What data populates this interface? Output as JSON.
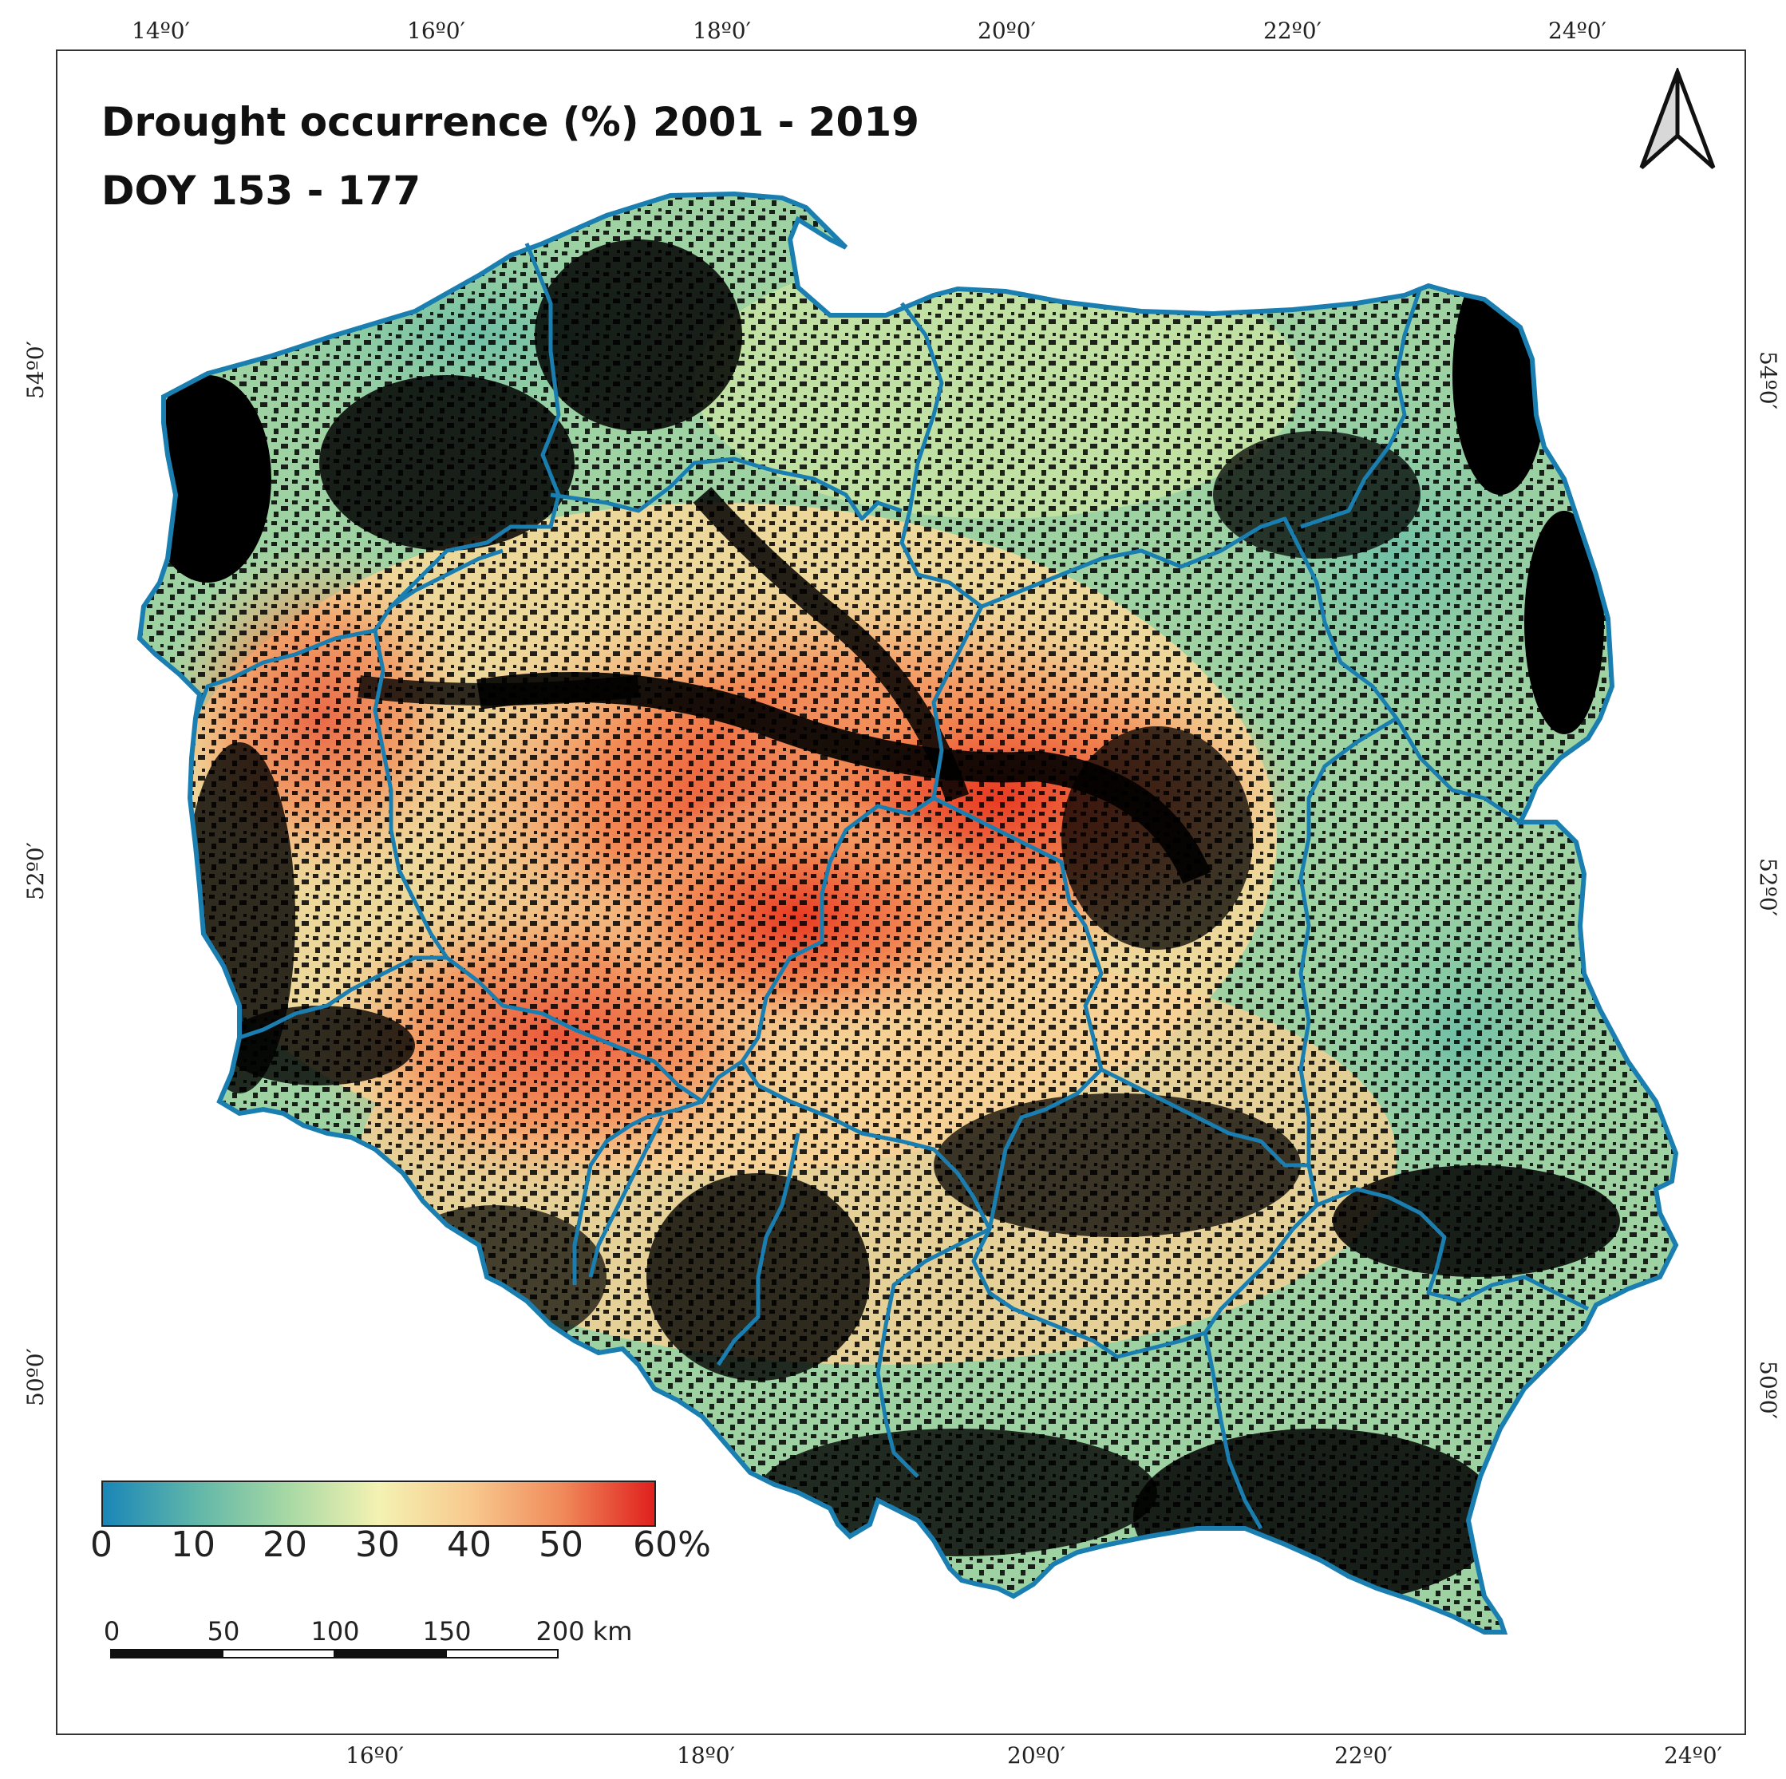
{
  "map": {
    "title_line1": "Drought occurrence (%) 2001 - 2019",
    "title_line2": "DOY 153 - 177",
    "top_lon_labels": [
      "14º0′",
      "16º0′",
      "18º0′",
      "20º0′",
      "22º0′",
      "24º0′"
    ],
    "bottom_lon_labels": [
      "16º0′",
      "18º0′",
      "20º0′",
      "22º0′",
      "24º0′"
    ],
    "left_lat_labels": [
      "54º0′",
      "52º0′",
      "50º0′"
    ],
    "right_lat_labels": [
      "54º0′",
      "52º0′",
      "50º0′"
    ],
    "legend": {
      "labels": [
        "0",
        "10",
        "20",
        "30",
        "40",
        "50",
        "60%"
      ],
      "colors": [
        "#1a86b8",
        "#5fb6a9",
        "#a6d8a4",
        "#f4f2b2",
        "#f8c98e",
        "#f08a5a",
        "#e0201e"
      ]
    },
    "scale_bar": {
      "labels": [
        "0",
        "50",
        "100",
        "150",
        "200 km"
      ]
    },
    "colors": {
      "boundary": "#1a7fb0",
      "nodata": "#000000",
      "low": "#7cc4a6",
      "mid": "#f4e7a8",
      "high": "#ee6a3c"
    }
  }
}
